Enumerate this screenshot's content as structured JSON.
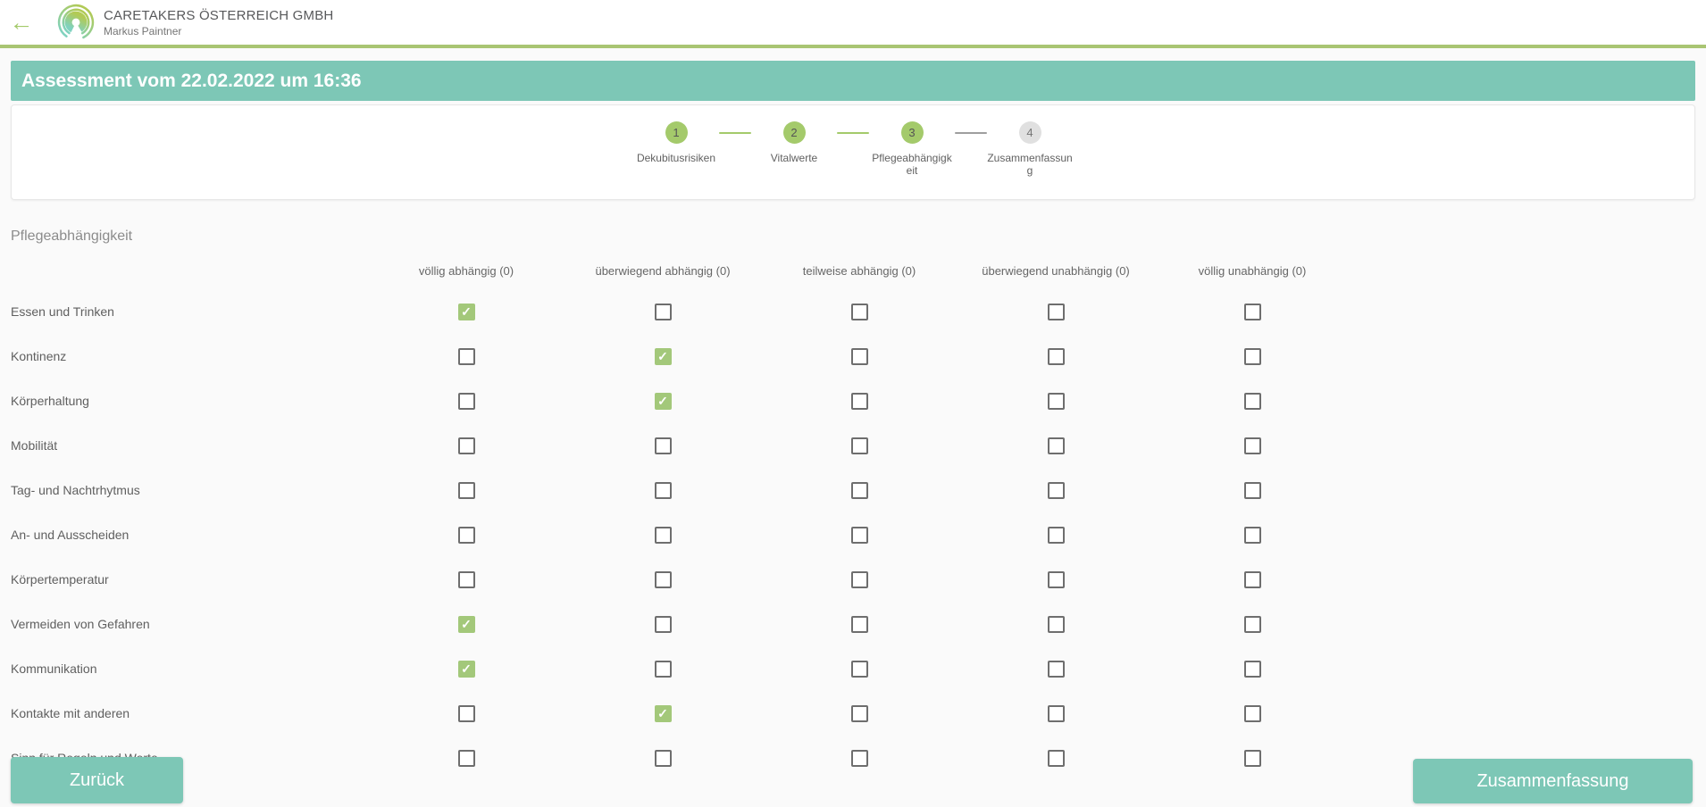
{
  "app_bar": {
    "back_icon": "←",
    "company_name": "CARETAKERS ÖSTERREICH GMBH",
    "user_name": "Markus Paintner"
  },
  "assessment_header": {
    "title": "Assessment vom 22.02.2022 um 16:36"
  },
  "stepper": {
    "steps": [
      {
        "number": "1",
        "label": "Dekubitusrisiken",
        "state": "complete"
      },
      {
        "number": "2",
        "label": "Vitalwerte",
        "state": "complete"
      },
      {
        "number": "3",
        "label": "Pflegeabhängigkeit",
        "state": "active"
      },
      {
        "number": "4",
        "label": "Zusammenfassung",
        "state": "pending"
      }
    ]
  },
  "section_heading": "Pflegeabhängigkeit",
  "dependency_table": {
    "check_glyph": "✓",
    "columns": [
      "völlig abhängig (0)",
      "überwiegend abhängig (0)",
      "teilweise abhängig (0)",
      "überwiegend unabhängig (0)",
      "völlig unabhängig (0)"
    ],
    "rows": [
      {
        "label": "Essen und Trinken",
        "checked_column": 0
      },
      {
        "label": "Kontinenz",
        "checked_column": 1
      },
      {
        "label": "Körperhaltung",
        "checked_column": 1
      },
      {
        "label": "Mobilität",
        "checked_column": null
      },
      {
        "label": "Tag- und Nachtrhytmus",
        "checked_column": null
      },
      {
        "label": "An- und Ausscheiden",
        "checked_column": null
      },
      {
        "label": "Körpertemperatur",
        "checked_column": null
      },
      {
        "label": "Vermeiden von Gefahren",
        "checked_column": 0
      },
      {
        "label": "Kommunikation",
        "checked_column": 0
      },
      {
        "label": "Kontakte mit anderen",
        "checked_column": 1
      },
      {
        "label": "Sinn für Regeln und Werte",
        "checked_column": null
      }
    ]
  },
  "footer": {
    "back_button": "Zurück",
    "next_button": "Zusammenfassung"
  },
  "colors": {
    "teal": "#7dc7b6",
    "green": "#a4ca6b",
    "green-line": "#a9c573",
    "check-green": "#a3c87a",
    "gray-circle": "#e0e0e0",
    "connector-gray": "#9e9e9e",
    "page-bg": "#fafafa",
    "text-dark": "#58595b",
    "text-gray": "#757575",
    "heading-gray": "#8c8c8c",
    "checkbox-border": "#6e6e6e"
  }
}
